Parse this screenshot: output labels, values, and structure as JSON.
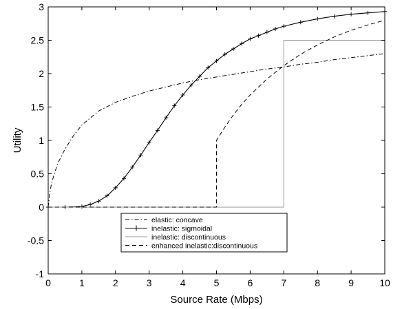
{
  "chart_data": {
    "type": "line",
    "title": "",
    "xlabel": "Source Rate (Mbps)",
    "ylabel": "Utility",
    "xlim": [
      0,
      10
    ],
    "ylim": [
      -1,
      3
    ],
    "xticks": [
      "0",
      "1",
      "2",
      "3",
      "4",
      "5",
      "6",
      "7",
      "8",
      "9",
      "10"
    ],
    "yticks": [
      "-1",
      "-0.5",
      "0",
      "0.5",
      "1",
      "1.5",
      "2",
      "2.5",
      "3"
    ],
    "grid": false,
    "legend_position": "bottom-center",
    "series": [
      {
        "name": "elastic: concave",
        "style": "dash-dot",
        "color": "#000000",
        "x": [
          0,
          0.05,
          0.1,
          0.2,
          0.3,
          0.5,
          0.75,
          1,
          1.5,
          2,
          2.5,
          3,
          3.5,
          4,
          4.5,
          5,
          5.5,
          6,
          6.5,
          7,
          7.5,
          8,
          8.5,
          9,
          9.5,
          10
        ],
        "y": [
          0,
          0.22,
          0.36,
          0.53,
          0.67,
          0.87,
          1.07,
          1.23,
          1.44,
          1.57,
          1.66,
          1.74,
          1.8,
          1.86,
          1.91,
          1.95,
          1.99,
          2.03,
          2.07,
          2.1,
          2.14,
          2.17,
          2.21,
          2.24,
          2.27,
          2.3
        ]
      },
      {
        "name": "inelastic: sigmoidal",
        "style": "solid-plus",
        "color": "#000000",
        "x": [
          0,
          0.5,
          1,
          1.25,
          1.5,
          1.75,
          2,
          2.25,
          2.5,
          2.75,
          3,
          3.25,
          3.5,
          3.75,
          4,
          4.25,
          4.5,
          4.75,
          5,
          5.25,
          5.5,
          5.75,
          6,
          6.25,
          6.5,
          6.75,
          7,
          7.5,
          8,
          8.5,
          9,
          9.5,
          10
        ],
        "y": [
          0,
          0,
          0.01,
          0.04,
          0.09,
          0.17,
          0.29,
          0.43,
          0.6,
          0.78,
          0.97,
          1.15,
          1.34,
          1.52,
          1.68,
          1.83,
          1.96,
          2.09,
          2.19,
          2.29,
          2.37,
          2.45,
          2.52,
          2.57,
          2.62,
          2.67,
          2.71,
          2.77,
          2.82,
          2.86,
          2.89,
          2.91,
          2.93
        ]
      },
      {
        "name": "inelastic: discontinuous",
        "style": "solid-light",
        "color": "#999999",
        "x": [
          0,
          7,
          7,
          10
        ],
        "y": [
          0,
          0,
          2.5,
          2.5
        ]
      },
      {
        "name": "enhanced inelastic:discontinuous",
        "style": "dashed",
        "color": "#000000",
        "x": [
          0,
          5,
          5,
          5.25,
          5.5,
          5.75,
          6,
          6.5,
          7,
          7.5,
          8,
          8.5,
          9,
          9.5,
          10
        ],
        "y": [
          0,
          0,
          1.0,
          1.2,
          1.38,
          1.54,
          1.68,
          1.92,
          2.12,
          2.29,
          2.43,
          2.55,
          2.65,
          2.73,
          2.8
        ]
      }
    ]
  }
}
